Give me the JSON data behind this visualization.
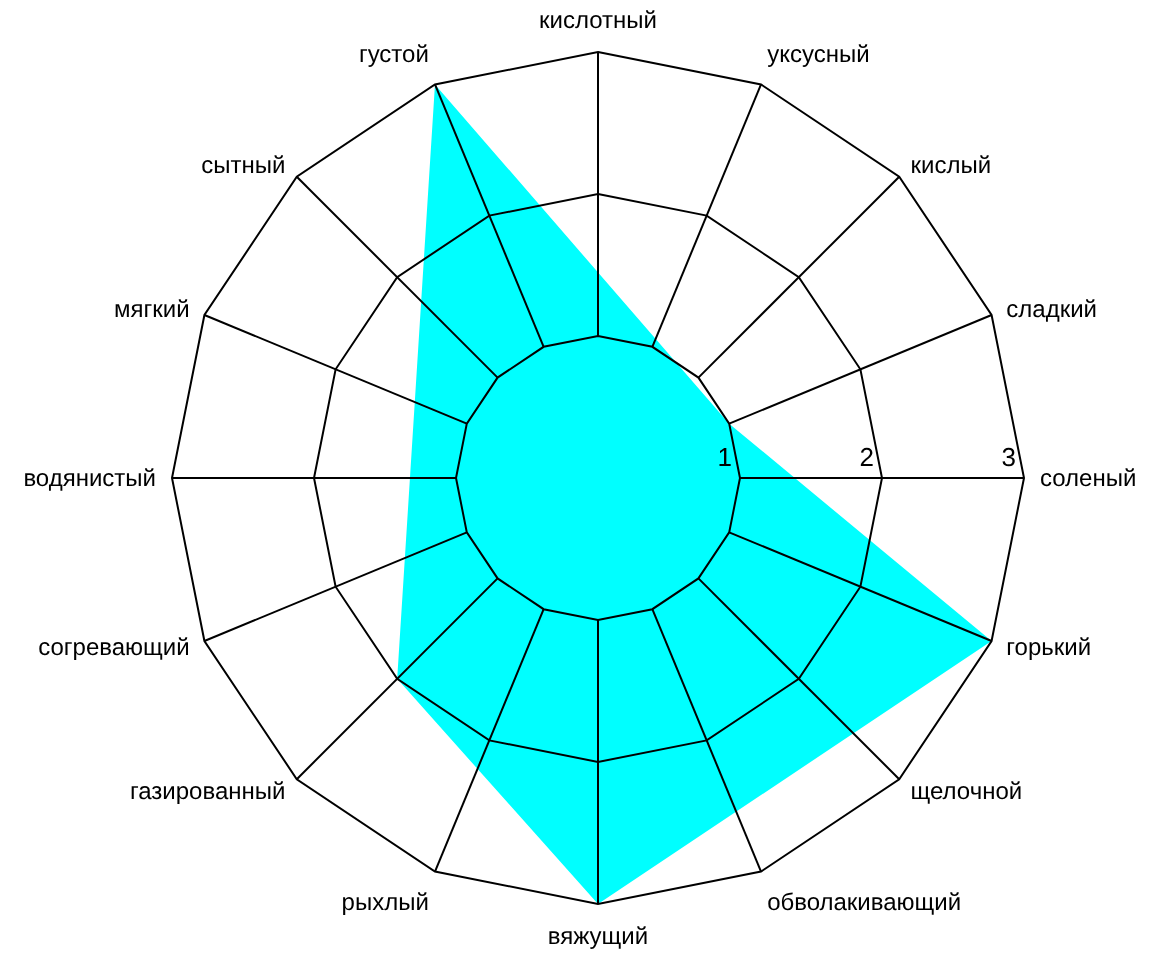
{
  "chart_data": {
    "type": "radar",
    "categories": [
      "кислотный",
      "уксусный",
      "кислый",
      "сладкий",
      "соленый",
      "горький",
      "щелочной",
      "обволакивающий",
      "вяжущий",
      "рыхлый",
      "газированный",
      "согревающий",
      "водянистый",
      "мягкий",
      "сытный",
      "густой"
    ],
    "series": [
      {
        "color": "#00ffff",
        "values": [
          null,
          null,
          null,
          1,
          null,
          3,
          null,
          null,
          3,
          null,
          2,
          null,
          null,
          null,
          null,
          3
        ]
      }
    ],
    "ylim": [
      0,
      3
    ],
    "yticks": [
      1,
      2,
      3
    ],
    "grid": true
  }
}
